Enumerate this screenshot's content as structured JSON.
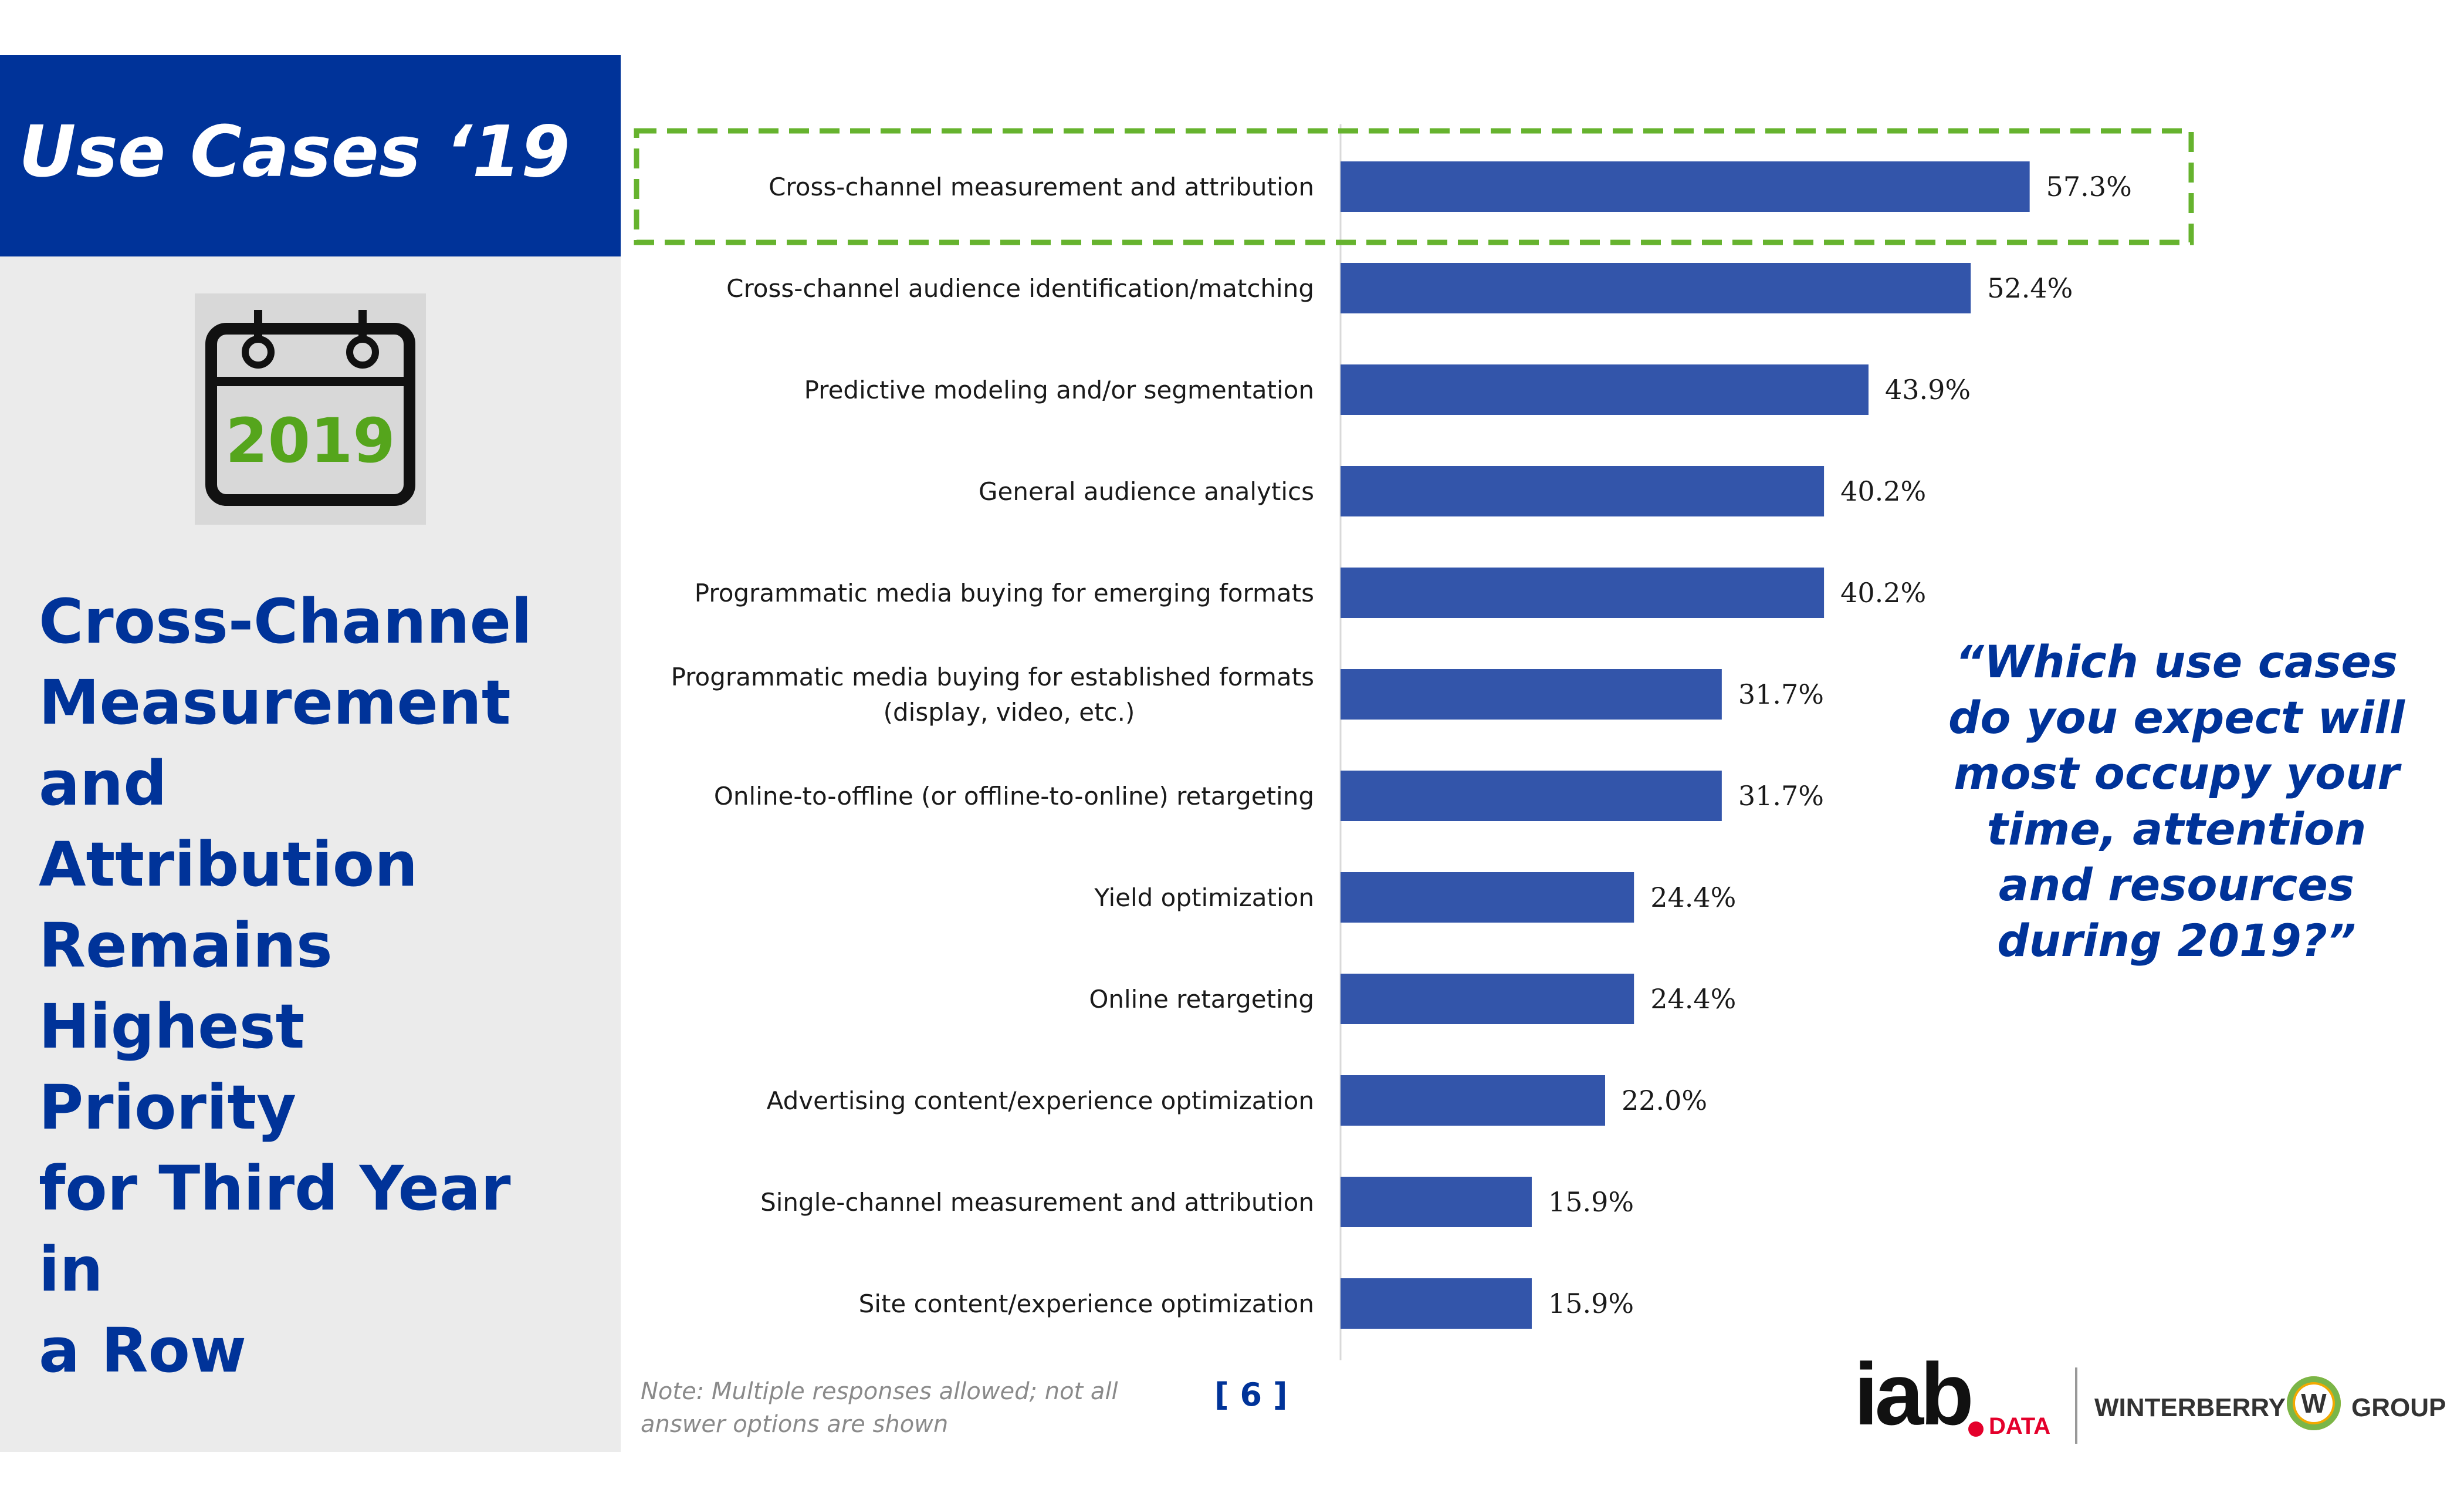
{
  "slide": {
    "title": "Use Cases ‘19",
    "calendar_year": "2019",
    "headline_lines": [
      "Cross-Channel",
      "Measurement",
      "and Attribution",
      "Remains",
      "Highest Priority",
      "for Third Year in",
      "a Row"
    ],
    "quote": "“Which use cases do you expect will most occupy your time, attention and resources during 2019?”",
    "note": "Note: Multiple responses allowed; not all answer options are shown",
    "page_number": "[ 6 ]",
    "logos": {
      "iab": "iab",
      "iab_suffix": "DATA",
      "winterberry_left": "WINTERBERRY",
      "winterberry_mark": "W",
      "winterberry_right": "GROUP"
    }
  },
  "colors": {
    "brand_blue": "#003399",
    "bar_blue": "#3355aa",
    "highlight_green": "#66b32e",
    "year_green": "#55a51c"
  },
  "chart_data": {
    "type": "bar",
    "orientation": "horizontal",
    "title": "",
    "xlabel": "",
    "ylabel": "",
    "xlim": [
      0,
      70
    ],
    "highlighted_category": "Cross-channel measurement and attribution",
    "categories": [
      [
        "Cross-channel measurement and attribution"
      ],
      [
        "Cross-channel audience identification/matching"
      ],
      [
        "Predictive modeling and/or segmentation"
      ],
      [
        "General audience analytics"
      ],
      [
        "Programmatic media buying for emerging formats"
      ],
      [
        "Programmatic media buying for established formats",
        "(display, video, etc.)"
      ],
      [
        "Online-to-offline (or offline-to-online) retargeting"
      ],
      [
        "Yield optimization"
      ],
      [
        "Online retargeting"
      ],
      [
        "Advertising content/experience optimization"
      ],
      [
        "Single-channel measurement and attribution"
      ],
      [
        "Site content/experience optimization"
      ]
    ],
    "values": [
      57.3,
      52.4,
      43.9,
      40.2,
      40.2,
      31.7,
      31.7,
      24.4,
      24.4,
      22.0,
      15.9,
      15.9
    ],
    "value_labels": [
      "57.3%",
      "52.4%",
      "43.9%",
      "40.2%",
      "40.2%",
      "31.7%",
      "31.7%",
      "24.4%",
      "24.4%",
      "22.0%",
      "15.9%",
      "15.9%"
    ]
  }
}
